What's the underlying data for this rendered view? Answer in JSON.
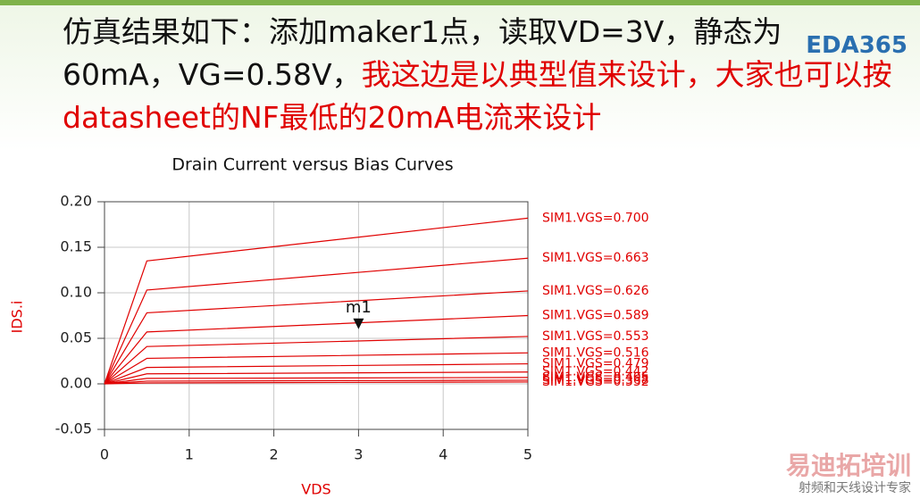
{
  "slide": {
    "heading_black": "仿真结果如下：添加maker1点，读取VD=3V，静态为60mA，VG=0.58V，",
    "heading_red": "我这边是以典型值来设计，大家也可以按datasheet的NF最低的20mA电流来设计",
    "logo": "EDA365",
    "watermark": "易迪拓培训",
    "watermark_sub": "射频和天线设计专家"
  },
  "chart_data": {
    "type": "line",
    "title": "Drain Current versus Bias Curves",
    "x_label": "VDS",
    "y_label": "IDS.i",
    "xlim": [
      0,
      5
    ],
    "xticks": [
      0,
      1,
      2,
      3,
      4,
      5
    ],
    "ylim": [
      -0.05,
      0.2
    ],
    "yticks": [
      {
        "value": 0.2,
        "label": "0.20"
      },
      {
        "value": 0.15,
        "label": "0.15"
      },
      {
        "value": 0.1,
        "label": "0.10"
      },
      {
        "value": 0.05,
        "label": "0.05"
      },
      {
        "value": 0,
        "label": "0.00"
      },
      -0.05
    ],
    "grid": true,
    "x": [
      0,
      0.5,
      5
    ],
    "series": [
      {
        "name": "SIM1.VGS=0.700",
        "color": "#e00000",
        "values": [
          0,
          0.135,
          0.182
        ]
      },
      {
        "name": "SIM1.VGS=0.663",
        "color": "#e00000",
        "values": [
          0,
          0.103,
          0.138
        ]
      },
      {
        "name": "SIM1.VGS=0.626",
        "color": "#e00000",
        "values": [
          0,
          0.078,
          0.102
        ]
      },
      {
        "name": "SIM1.VGS=0.589",
        "color": "#e00000",
        "values": [
          0,
          0.057,
          0.075
        ]
      },
      {
        "name": "SIM1.VGS=0.553",
        "color": "#e00000",
        "values": [
          0,
          0.041,
          0.052
        ]
      },
      {
        "name": "SIM1.VGS=0.516",
        "color": "#e00000",
        "values": [
          0,
          0.028,
          0.034
        ]
      },
      {
        "name": "SIM1.VGS=0.479",
        "color": "#e00000",
        "values": [
          0,
          0.018,
          0.022
        ]
      },
      {
        "name": "SIM1.VGS=0.442",
        "color": "#e00000",
        "values": [
          0,
          0.011,
          0.013
        ]
      },
      {
        "name": "SIM1.VGS=0.405",
        "color": "#e00000",
        "values": [
          0,
          0.006,
          0.007
        ]
      },
      {
        "name": "SIM1.VGS=0.368",
        "color": "#e00000",
        "values": [
          0,
          0.003,
          0.004
        ]
      },
      {
        "name": "SIM1.VGS=0.332",
        "color": "#e00000",
        "values": [
          0,
          0.001,
          0.002
        ]
      }
    ],
    "marker": {
      "label": "m1",
      "x": 3,
      "y": 0.06
    }
  }
}
